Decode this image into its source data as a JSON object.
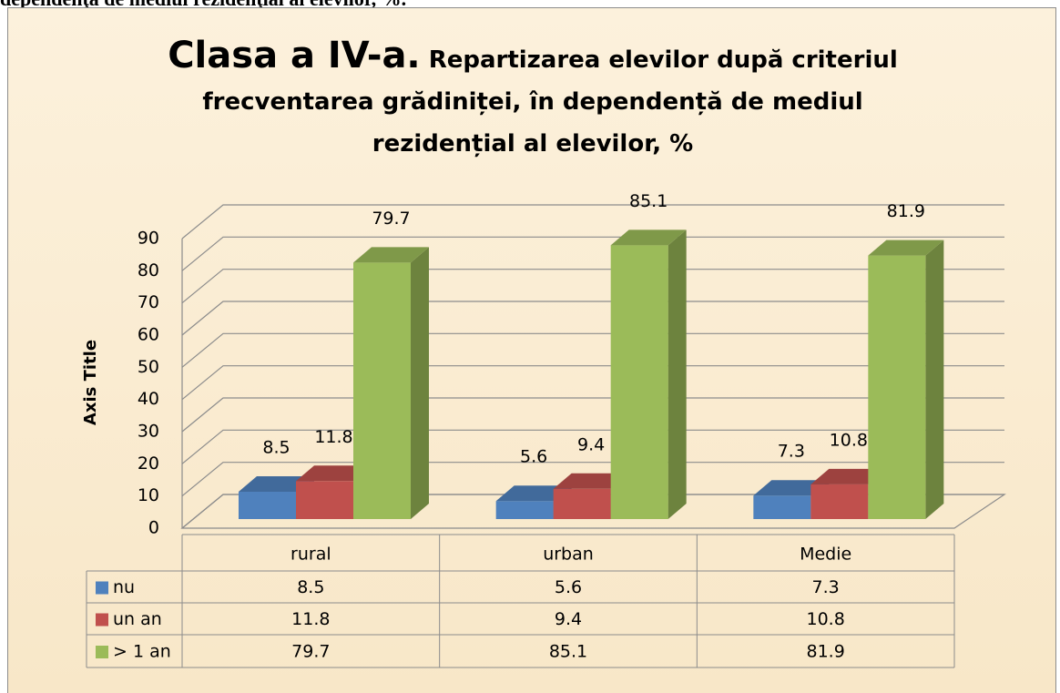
{
  "caption": "dependenţa de mediul rezidenţial al elevilor, %.",
  "chart_data": {
    "type": "bar3d",
    "title": "Clasa a IV-a.",
    "subtitle": "Repartizarea elevilor după criteriul frecventarea grădiniței, în dependență de mediul rezidențial al elevilor, %",
    "y_label": "Axis Title",
    "categories": [
      "rural",
      "urban",
      "Medie"
    ],
    "series": [
      {
        "name": "nu",
        "color": "#4f81bd",
        "values": [
          8.5,
          5.6,
          7.3
        ]
      },
      {
        "name": "un an",
        "color": "#c0504d",
        "values": [
          11.8,
          9.4,
          10.8
        ]
      },
      {
        "name": "> 1 an",
        "color": "#9bbb59",
        "values": [
          79.7,
          85.1,
          81.9
        ]
      }
    ],
    "ylim": [
      0,
      90
    ],
    "yticks": [
      0,
      10,
      20,
      30,
      40,
      50,
      60,
      70,
      80,
      90
    ],
    "grid": true
  }
}
